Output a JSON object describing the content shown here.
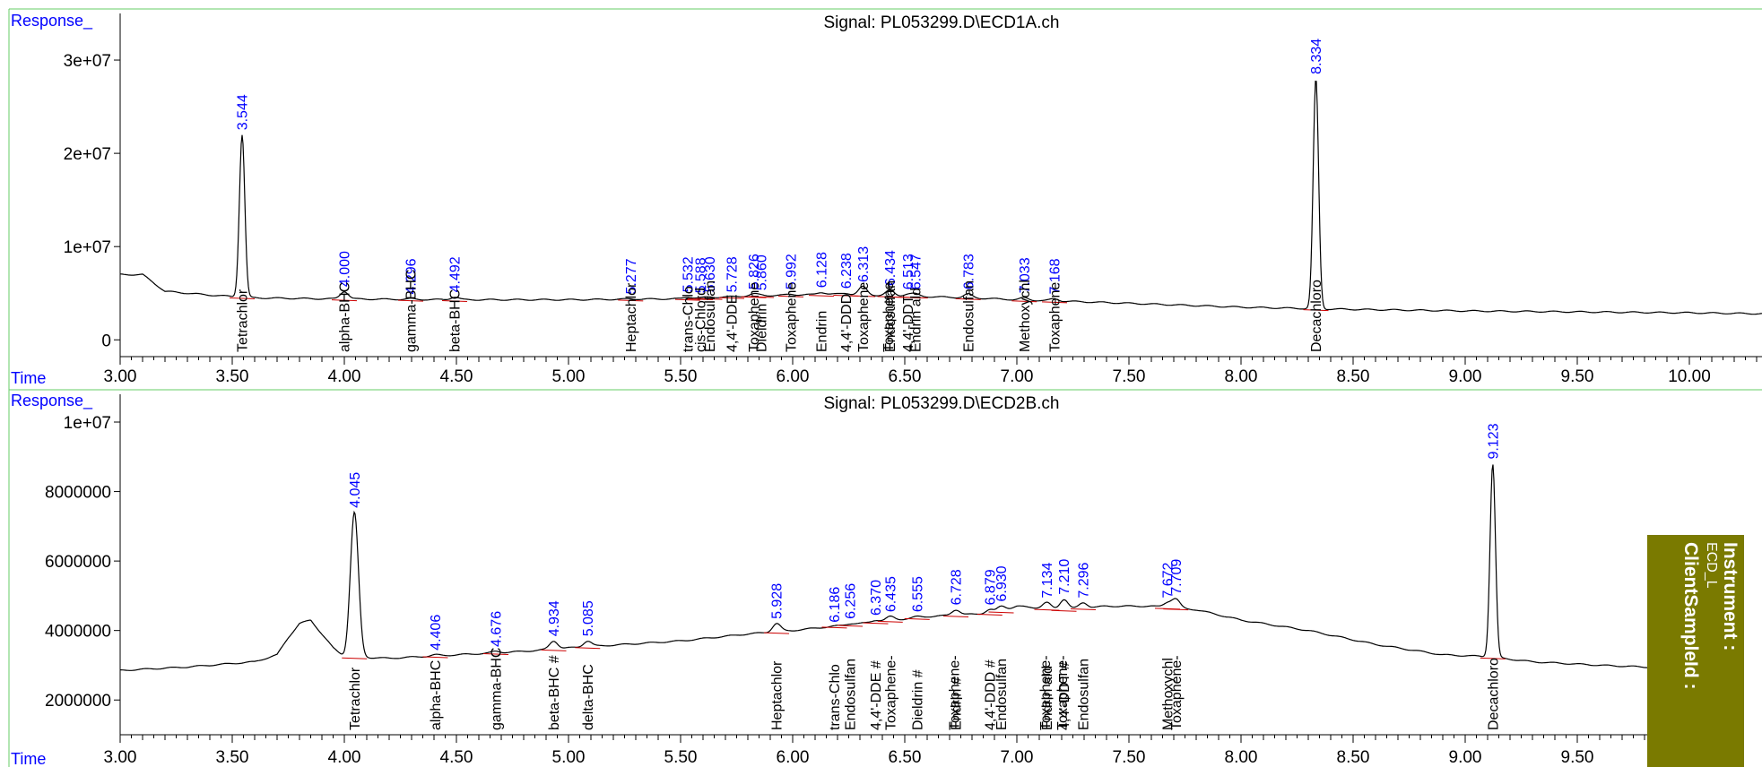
{
  "chart_data": [
    {
      "type": "line",
      "title": "Signal: PL053299.D\\ECD1A.ch",
      "ylabel": "Response_",
      "xlabel": "Time",
      "xlim": [
        3.0,
        10.0
      ],
      "xticks": [
        3.0,
        3.5,
        4.0,
        4.5,
        5.0,
        5.5,
        6.0,
        6.5,
        7.0,
        7.5,
        8.0,
        8.5,
        9.0,
        9.5,
        10.0
      ],
      "xtick_labels": [
        "3.00",
        "3.50",
        "4.00",
        "4.50",
        "5.00",
        "5.50",
        "6.00",
        "6.50",
        "7.00",
        "7.50",
        "8.00",
        "8.50",
        "9.00",
        "9.50",
        "10.00"
      ],
      "yticks": [
        0,
        10000000,
        20000000,
        30000000
      ],
      "ytick_labels": [
        "0",
        "1e+07",
        "2e+07",
        "3e+07"
      ],
      "ylim": [
        -1800000,
        35000000
      ],
      "grid": false,
      "baseline": [
        [
          3.0,
          7000000
        ],
        [
          3.1,
          7000000
        ],
        [
          3.2,
          5200000
        ],
        [
          3.4,
          4800000
        ],
        [
          3.6,
          4500000
        ],
        [
          3.9,
          4400000
        ],
        [
          4.5,
          4300000
        ],
        [
          5.0,
          4300000
        ],
        [
          5.5,
          4400000
        ],
        [
          5.8,
          4700000
        ],
        [
          6.2,
          4900000
        ],
        [
          6.8,
          4500000
        ],
        [
          7.0,
          4300000
        ],
        [
          7.4,
          4000000
        ],
        [
          8.0,
          3500000
        ],
        [
          8.4,
          3300000
        ],
        [
          9.0,
          3100000
        ],
        [
          9.5,
          3000000
        ],
        [
          10.0,
          2900000
        ],
        [
          10.32,
          2800000
        ]
      ],
      "peaks": [
        {
          "rt": 3.544,
          "label": "3.544",
          "compound": "Tetrachlor",
          "height": 22000000
        },
        {
          "rt": 4.0,
          "label": "4.000",
          "compound": "alpha-BHC",
          "height": 5200000
        },
        {
          "rt": 4.296,
          "label": "4.296",
          "compound": "gamma-BHC",
          "height": 4400000
        },
        {
          "rt": 4.492,
          "label": "4.492",
          "compound": "beta-BHC",
          "height": 4600000
        },
        {
          "rt": 5.277,
          "label": "5.277",
          "compound": "Heptachlor",
          "height": 4400000
        },
        {
          "rt": 5.532,
          "label": "5.532",
          "compound": "trans-Chlo",
          "height": 4600000
        },
        {
          "rt": 5.588,
          "label": "5.588",
          "compound": "cis-Chlord",
          "height": 4500000
        },
        {
          "rt": 5.63,
          "label": "5.630",
          "compound": "Endosulfan",
          "height": 4600000
        },
        {
          "rt": 5.728,
          "label": "5.728",
          "compound": "4,4'-DDE",
          "height": 4600000
        },
        {
          "rt": 5.826,
          "label": "5.826",
          "compound": "Toxaphene",
          "height": 4900000
        },
        {
          "rt": 5.86,
          "label": "5.860",
          "compound": "Dieldrin",
          "height": 4800000
        },
        {
          "rt": 5.992,
          "label": "5.992",
          "compound": "Toxaphene",
          "height": 4900000
        },
        {
          "rt": 6.128,
          "label": "6.128",
          "compound": "Endrin",
          "height": 5100000
        },
        {
          "rt": 6.238,
          "label": "6.238",
          "compound": "4,4'-DDD",
          "height": 5000000
        },
        {
          "rt": 6.313,
          "label": "6.313",
          "compound": "Toxaphene",
          "height": 5700000
        },
        {
          "rt": 6.434,
          "label": "6.434",
          "compound": "Endosulfan",
          "height": 5300000
        },
        {
          "rt": 6.513,
          "label": "6.513",
          "compound": "4,4'-DDT",
          "height": 4900000
        },
        {
          "rt": 6.547,
          "label": "6.547",
          "compound": "Endrin ald",
          "height": 4900000
        },
        {
          "rt": 6.783,
          "label": "6.783",
          "compound": "Endosulfan",
          "height": 4900000
        },
        {
          "rt": 7.033,
          "label": "7.033",
          "compound": "Methoxychl",
          "height": 4500000
        },
        {
          "rt": 7.168,
          "label": "7.168",
          "compound": "Toxaphene",
          "height": 4400000
        },
        {
          "rt": 8.334,
          "label": "8.334",
          "compound": "Decachloro",
          "height": 28000000
        }
      ],
      "extra_labels": [
        {
          "rt": 6.434,
          "compound": "Toxaphene"
        }
      ]
    },
    {
      "type": "line",
      "title": "Signal: PL053299.D\\ECD2B.ch",
      "ylabel": "Response_",
      "xlabel": "Time",
      "xlim": [
        3.0,
        10.0
      ],
      "xticks": [
        3.0,
        3.5,
        4.0,
        4.5,
        5.0,
        5.5,
        6.0,
        6.5,
        7.0,
        7.5,
        8.0,
        8.5,
        9.0,
        9.5
      ],
      "xtick_labels": [
        "3.00",
        "3.50",
        "4.00",
        "4.50",
        "5.00",
        "5.50",
        "6.00",
        "6.50",
        "7.00",
        "7.50",
        "8.00",
        "8.50",
        "9.00",
        "9.50"
      ],
      "yticks": [
        2000000,
        4000000,
        6000000,
        8000000,
        10000000
      ],
      "ytick_labels": [
        "2000000",
        "4000000",
        "6000000",
        "8000000",
        "1e+07"
      ],
      "ylim": [
        1000000,
        10800000
      ],
      "grid": false,
      "baseline": [
        [
          3.0,
          2850000
        ],
        [
          3.3,
          2950000
        ],
        [
          3.6,
          3100000
        ],
        [
          3.7,
          3300000
        ],
        [
          3.75,
          3800000
        ],
        [
          3.8,
          4200000
        ],
        [
          3.85,
          4300000
        ],
        [
          3.9,
          3900000
        ],
        [
          3.95,
          3500000
        ],
        [
          4.0,
          3250000
        ],
        [
          4.2,
          3200000
        ],
        [
          4.5,
          3300000
        ],
        [
          4.8,
          3400000
        ],
        [
          5.0,
          3500000
        ],
        [
          5.5,
          3700000
        ],
        [
          5.8,
          3900000
        ],
        [
          6.0,
          4000000
        ],
        [
          6.3,
          4200000
        ],
        [
          6.6,
          4400000
        ],
        [
          6.9,
          4500000
        ],
        [
          7.0,
          4700000
        ],
        [
          7.2,
          4600000
        ],
        [
          7.4,
          4700000
        ],
        [
          7.6,
          4700000
        ],
        [
          7.8,
          4600000
        ],
        [
          8.0,
          4300000
        ],
        [
          8.3,
          4000000
        ],
        [
          8.6,
          3600000
        ],
        [
          8.9,
          3300000
        ],
        [
          9.1,
          3250000
        ],
        [
          9.3,
          3100000
        ],
        [
          9.6,
          3000000
        ],
        [
          9.8,
          2950000
        ]
      ],
      "peaks": [
        {
          "rt": 4.045,
          "label": "4.045",
          "compound": "Tetrachlor",
          "height": 7400000
        },
        {
          "rt": 4.406,
          "label": "4.406",
          "compound": "alpha-BHC",
          "height": 3300000
        },
        {
          "rt": 4.676,
          "label": "4.676",
          "compound": "gamma-BHC",
          "height": 3400000
        },
        {
          "rt": 4.934,
          "label": "4.934",
          "compound": "beta-BHC #",
          "height": 3700000
        },
        {
          "rt": 5.085,
          "label": "5.085",
          "compound": "delta-BHC",
          "height": 3700000
        },
        {
          "rt": 5.928,
          "label": "5.928",
          "compound": "Heptachlor",
          "height": 4200000
        },
        {
          "rt": 6.186,
          "label": "6.186",
          "compound": "trans-Chlo",
          "height": 4100000
        },
        {
          "rt": 6.256,
          "label": "6.256",
          "compound": "Endosulfan",
          "height": 4200000
        },
        {
          "rt": 6.37,
          "label": "6.370",
          "compound": "4,4'-DDE #",
          "height": 4300000
        },
        {
          "rt": 6.435,
          "label": "6.435",
          "compound": "Toxaphene-",
          "height": 4400000
        },
        {
          "rt": 6.555,
          "label": "6.555",
          "compound": "Dieldrin #",
          "height": 4400000
        },
        {
          "rt": 6.728,
          "label": "6.728",
          "compound": "Endrin #",
          "height": 4600000
        },
        {
          "rt": 6.879,
          "label": "6.879",
          "compound": "4,4'-DDD #",
          "height": 4600000
        },
        {
          "rt": 6.93,
          "label": "6.930",
          "compound": "Endosulfan",
          "height": 4700000
        },
        {
          "rt": 7.134,
          "label": "7.134",
          "compound": "Endrin ald",
          "height": 4800000
        },
        {
          "rt": 7.21,
          "label": "7.210",
          "compound": "4,4'-DDT #",
          "height": 4900000
        },
        {
          "rt": 7.296,
          "label": "7.296",
          "compound": "Endosulfan",
          "height": 4800000
        },
        {
          "rt": 7.672,
          "label": "7.672",
          "compound": "Methoxychl",
          "height": 4800000
        },
        {
          "rt": 7.709,
          "label": "7.709",
          "compound": "Toxaphene-",
          "height": 4900000
        },
        {
          "rt": 9.123,
          "label": "9.123",
          "compound": "Decachloro",
          "height": 8800000
        }
      ],
      "extra_labels": [
        {
          "rt": 6.728,
          "compound": "Toxaphene-"
        },
        {
          "rt": 7.134,
          "compound": "Toxaphene-"
        },
        {
          "rt": 7.21,
          "compound": "Toxaphene-"
        }
      ]
    }
  ],
  "badge": {
    "line1": "Instrument :",
    "line2": "ECD_L",
    "line3": "ClientSampleId :"
  },
  "colors": {
    "axis_label": "#0000ff",
    "peak_rt_label": "#0000ff",
    "trace": "#000000",
    "baseline_mark": "#cc0000",
    "frame": "#66cc66",
    "badge_bg": "#7a7a00",
    "badge_text": "#ffffff"
  }
}
